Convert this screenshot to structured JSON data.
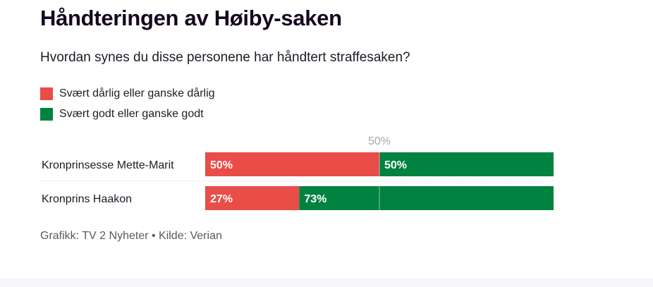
{
  "title": "Håndteringen av Høiby-saken",
  "subtitle": "Hvordan synes du disse personene har håndtert straffesaken?",
  "legend": [
    {
      "label": "Svært dårlig eller ganske dårlig",
      "color": "#e84d48"
    },
    {
      "label": "Svært godt eller ganske godt",
      "color": "#008240"
    }
  ],
  "chart_data": {
    "type": "bar",
    "stacked": true,
    "orientation": "horizontal",
    "categories": [
      "Kronprinsesse Mette-Marit",
      "Kronprins Haakon"
    ],
    "series": [
      {
        "name": "Svært dårlig eller ganske dårlig",
        "values": [
          50,
          27
        ],
        "labels": [
          "50%",
          "27%"
        ],
        "color": "#e84d48"
      },
      {
        "name": "Svært godt eller ganske godt",
        "values": [
          50,
          73
        ],
        "labels": [
          "50%",
          "73%"
        ],
        "color": "#008240"
      }
    ],
    "xlim": [
      0,
      100
    ],
    "reference_line": {
      "value": 50,
      "label": "50%"
    }
  },
  "source": "Grafikk: TV 2 Nyheter • Kilde: Verian"
}
